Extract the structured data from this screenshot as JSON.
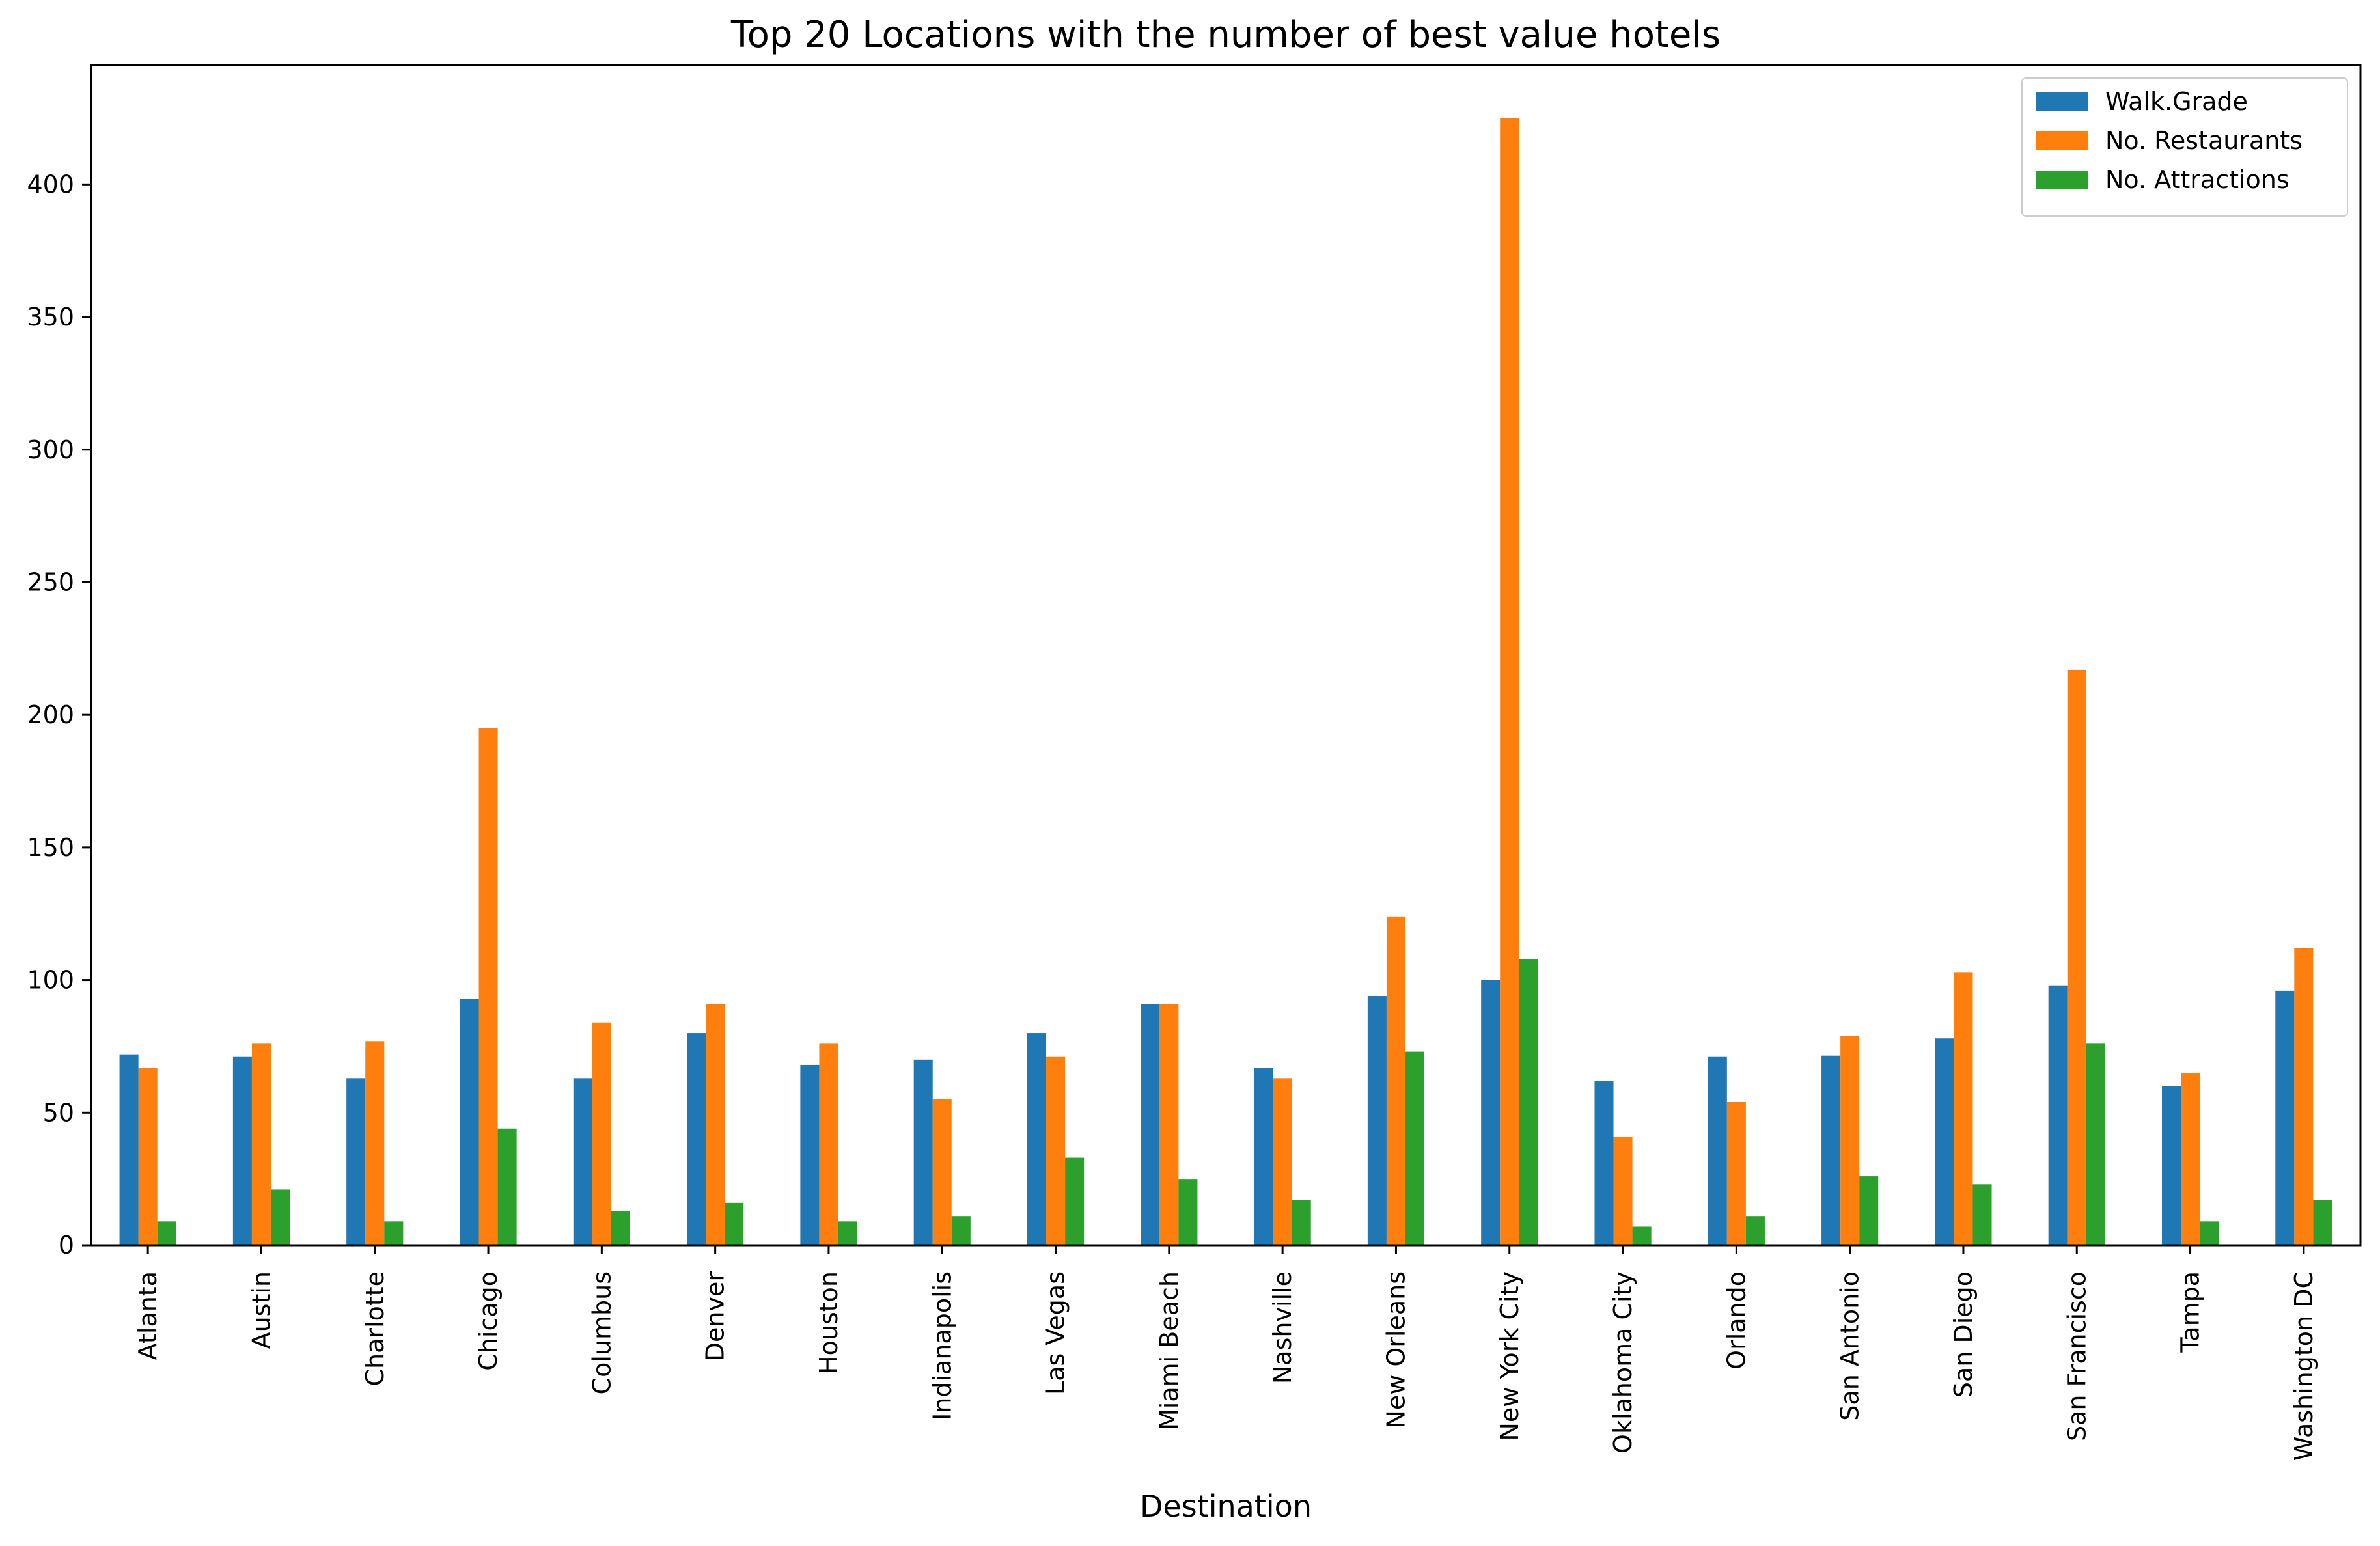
{
  "chart_data": {
    "type": "bar",
    "title": "Top 20 Locations with the number of best value hotels",
    "xlabel": "Destination",
    "ylabel": "",
    "ylim": [
      0,
      445
    ],
    "yticks": [
      0,
      50,
      100,
      150,
      200,
      250,
      300,
      350,
      400
    ],
    "grid": false,
    "legend_position": "top-right",
    "categories": [
      "Atlanta",
      "Austin",
      "Charlotte",
      "Chicago",
      "Columbus",
      "Denver",
      "Houston",
      "Indianapolis",
      "Las Vegas",
      "Miami Beach",
      "Nashville",
      "New Orleans",
      "New York City",
      "Oklahoma City",
      "Orlando",
      "San Antonio",
      "San Diego",
      "San Francisco",
      "Tampa",
      "Washington DC"
    ],
    "series": [
      {
        "name": "Walk.Grade",
        "color": "#1f77b4",
        "values": [
          72,
          71,
          63,
          93,
          63,
          80,
          68,
          70,
          80,
          91,
          67,
          94,
          100,
          62,
          71,
          71.5,
          78,
          98,
          60,
          96
        ]
      },
      {
        "name": "No. Restaurants",
        "color": "#ff7f0e",
        "values": [
          67,
          76,
          77,
          195,
          84,
          91,
          76,
          55,
          71,
          91,
          63,
          124,
          425,
          41,
          54,
          79,
          103,
          217,
          65,
          112
        ]
      },
      {
        "name": "No. Attractions",
        "color": "#2ca02c",
        "values": [
          9,
          21,
          9,
          44,
          13,
          16,
          9,
          11,
          33,
          25,
          17,
          73,
          108,
          7,
          11,
          26,
          23,
          76,
          9,
          17
        ]
      }
    ]
  }
}
